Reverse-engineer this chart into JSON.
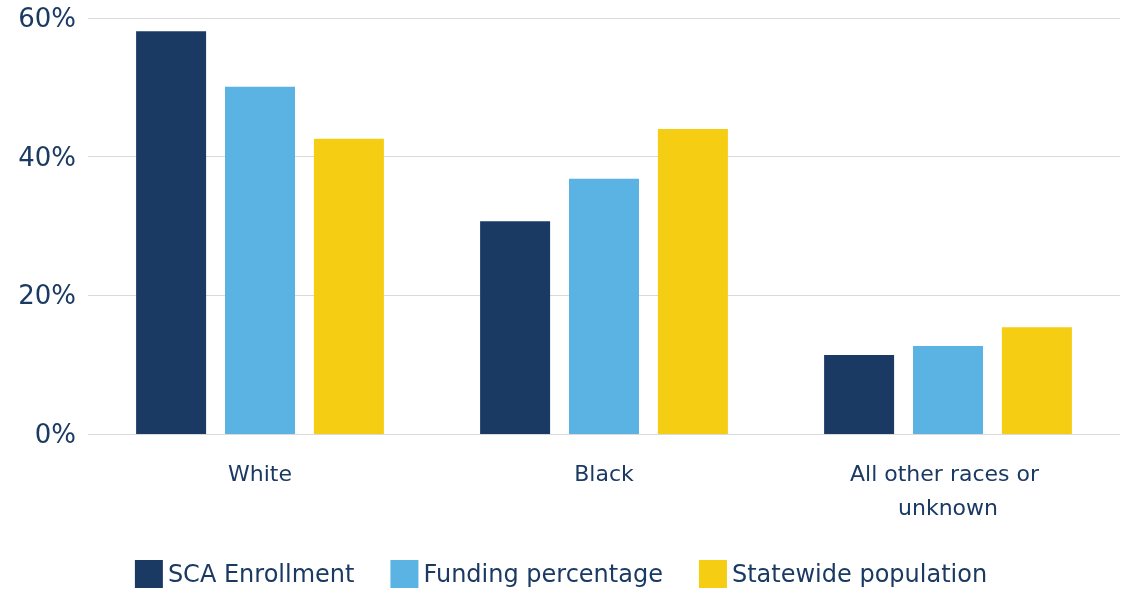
{
  "chart_data": {
    "type": "bar",
    "categories": [
      "White",
      "Black",
      "All other races or unknown"
    ],
    "series": [
      {
        "name": "SCA Enrollment",
        "color": "#1b3a63",
        "values": [
          58.1,
          30.7,
          11.4
        ]
      },
      {
        "name": "Funding percentage",
        "color": "#5ab3e2",
        "values": [
          50.1,
          36.8,
          12.7
        ]
      },
      {
        "name": "Statewide population",
        "color": "#f5cd12",
        "values": [
          42.6,
          44.0,
          15.4
        ]
      }
    ],
    "ylim": [
      0,
      60
    ],
    "yticks": [
      {
        "value": 0,
        "label": "0%"
      },
      {
        "value": 20,
        "label": "20%"
      },
      {
        "value": 40,
        "label": "40%"
      },
      {
        "value": 60,
        "label": "60%"
      }
    ],
    "grid": "y",
    "legend": "bottom"
  }
}
